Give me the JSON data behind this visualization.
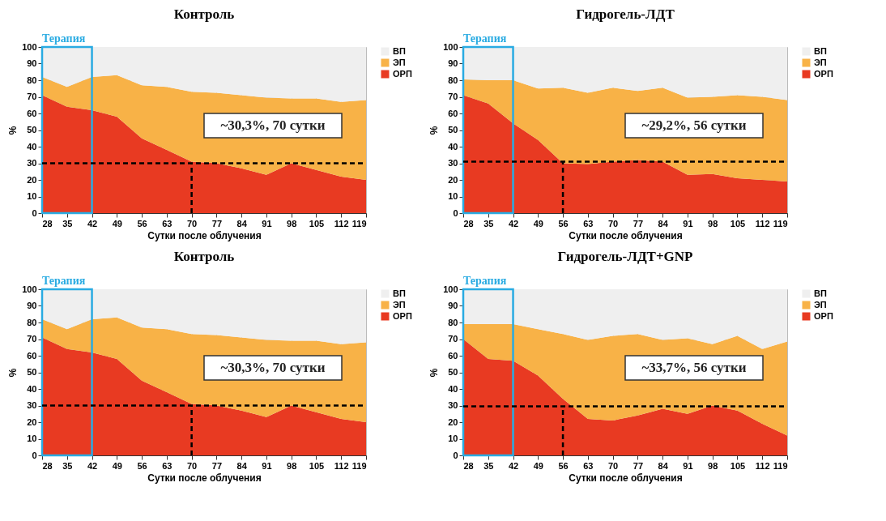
{
  "chart_data": [
    {
      "type": "area",
      "stacked": true,
      "title": "Контроль",
      "xlabel": "Сутки после облучения",
      "ylabel": "%",
      "x": [
        28,
        35,
        42,
        49,
        56,
        63,
        70,
        77,
        84,
        91,
        98,
        105,
        112,
        119
      ],
      "xlim": [
        28,
        119
      ],
      "xticks": [
        28,
        35,
        42,
        49,
        56,
        63,
        70,
        77,
        84,
        91,
        98,
        105,
        112,
        119
      ],
      "ylim": [
        0,
        100
      ],
      "yticks": [
        0,
        10,
        20,
        30,
        40,
        50,
        60,
        70,
        80,
        90,
        100
      ],
      "grid": true,
      "legend": "right",
      "series": [
        {
          "name": "ОРП",
          "color": "#e83a22",
          "values": [
            71,
            64,
            62,
            58,
            45,
            38,
            31,
            30,
            27,
            23,
            30,
            26,
            22,
            20
          ]
        },
        {
          "name": "ЭП",
          "color": "#f8b247",
          "values": [
            11,
            12,
            20,
            25,
            32,
            38,
            42,
            42.5,
            44,
            46.5,
            39,
            43,
            45,
            48
          ]
        },
        {
          "name": "ВП",
          "color": "#efefef",
          "values": [
            18,
            24,
            18,
            17,
            23,
            24,
            27,
            27.5,
            29,
            30.5,
            31,
            31,
            33,
            32
          ]
        }
      ],
      "bands": [
        {
          "axis": "x",
          "from": 28,
          "to": 42,
          "label": "Терапия",
          "color": "#29abe2"
        }
      ],
      "ref_lines": [
        {
          "axis": "y",
          "value": 30,
          "line_style": "dashed"
        },
        {
          "axis": "x",
          "value": 70,
          "line_style": "dashed"
        }
      ],
      "annotations": [
        "~30,3%, 70 сутки"
      ]
    },
    {
      "type": "area",
      "stacked": true,
      "title": "Гидрогель-ЛДТ",
      "xlabel": "Сутки после облучения",
      "ylabel": "%",
      "x": [
        28,
        35,
        42,
        49,
        56,
        63,
        70,
        77,
        84,
        91,
        98,
        105,
        112,
        119
      ],
      "xlim": [
        28,
        119
      ],
      "xticks": [
        28,
        35,
        42,
        49,
        56,
        63,
        70,
        77,
        84,
        91,
        98,
        105,
        112,
        119
      ],
      "ylim": [
        0,
        100
      ],
      "yticks": [
        0,
        10,
        20,
        30,
        40,
        50,
        60,
        70,
        80,
        90,
        100
      ],
      "grid": true,
      "legend": "right",
      "series": [
        {
          "name": "ОРП",
          "color": "#e83a22",
          "values": [
            71,
            66,
            54,
            44,
            30,
            29.5,
            31,
            32,
            31,
            23,
            23.5,
            21,
            20,
            19
          ]
        },
        {
          "name": "ЭП",
          "color": "#f8b247",
          "values": [
            9.5,
            14,
            26,
            31,
            45.5,
            43,
            44.5,
            41.5,
            44.5,
            46.5,
            46.5,
            50,
            50,
            49
          ]
        },
        {
          "name": "ВП",
          "color": "#efefef",
          "values": [
            19.5,
            20,
            20,
            25,
            24.5,
            27.5,
            24.5,
            26.5,
            24.5,
            30.5,
            30,
            29,
            30,
            32
          ]
        }
      ],
      "bands": [
        {
          "axis": "x",
          "from": 28,
          "to": 42,
          "label": "Терапия",
          "color": "#29abe2"
        }
      ],
      "ref_lines": [
        {
          "axis": "y",
          "value": 31,
          "line_style": "dashed"
        },
        {
          "axis": "x",
          "value": 56,
          "line_style": "dashed"
        }
      ],
      "annotations": [
        "~29,2%, 56 сутки"
      ]
    },
    {
      "type": "area",
      "stacked": true,
      "title": "Контроль",
      "xlabel": "Сутки после облучения",
      "ylabel": "%",
      "x": [
        28,
        35,
        42,
        49,
        56,
        63,
        70,
        77,
        84,
        91,
        98,
        105,
        112,
        119
      ],
      "xlim": [
        28,
        119
      ],
      "xticks": [
        28,
        35,
        42,
        49,
        56,
        63,
        70,
        77,
        84,
        91,
        98,
        105,
        112,
        119
      ],
      "ylim": [
        0,
        100
      ],
      "yticks": [
        0,
        10,
        20,
        30,
        40,
        50,
        60,
        70,
        80,
        90,
        100
      ],
      "grid": true,
      "legend": "right",
      "series": [
        {
          "name": "ОРП",
          "color": "#e83a22",
          "values": [
            71,
            64,
            62,
            58,
            45,
            38,
            31,
            30,
            27,
            23,
            30,
            26,
            22,
            20
          ]
        },
        {
          "name": "ЭП",
          "color": "#f8b247",
          "values": [
            11,
            12,
            20,
            25,
            32,
            38,
            42,
            42.5,
            44,
            46.5,
            39,
            43,
            45,
            48
          ]
        },
        {
          "name": "ВП",
          "color": "#efefef",
          "values": [
            18,
            24,
            18,
            17,
            23,
            24,
            27,
            27.5,
            29,
            30.5,
            31,
            31,
            33,
            32
          ]
        }
      ],
      "bands": [
        {
          "axis": "x",
          "from": 28,
          "to": 42,
          "label": "Терапия",
          "color": "#29abe2"
        }
      ],
      "ref_lines": [
        {
          "axis": "y",
          "value": 30,
          "line_style": "dashed"
        },
        {
          "axis": "x",
          "value": 70,
          "line_style": "dashed"
        }
      ],
      "annotations": [
        "~30,3%, 70 сутки"
      ]
    },
    {
      "type": "area",
      "stacked": true,
      "title": "Гидрогель-ЛДТ+GNP",
      "xlabel": "Сутки после облучения",
      "ylabel": "%",
      "x": [
        28,
        35,
        42,
        49,
        56,
        63,
        70,
        77,
        84,
        91,
        98,
        105,
        112,
        119
      ],
      "xlim": [
        28,
        119
      ],
      "xticks": [
        28,
        35,
        42,
        49,
        56,
        63,
        70,
        77,
        84,
        91,
        98,
        105,
        112,
        119
      ],
      "ylim": [
        0,
        100
      ],
      "yticks": [
        0,
        10,
        20,
        30,
        40,
        50,
        60,
        70,
        80,
        90,
        100
      ],
      "grid": true,
      "legend": "right",
      "series": [
        {
          "name": "ОРП",
          "color": "#e83a22",
          "values": [
            70,
            58,
            57,
            48,
            34,
            22,
            21,
            24,
            28,
            25,
            30,
            27,
            19,
            12
          ]
        },
        {
          "name": "ЭП",
          "color": "#f8b247",
          "values": [
            9,
            21,
            22,
            28,
            39,
            47.5,
            51,
            49,
            41.5,
            45.5,
            37,
            45,
            45,
            56.5
          ]
        },
        {
          "name": "ВП",
          "color": "#efefef",
          "values": [
            21,
            21,
            21,
            24,
            27,
            30.5,
            28,
            27,
            30.5,
            29.5,
            33,
            28,
            36,
            31.5
          ]
        }
      ],
      "bands": [
        {
          "axis": "x",
          "from": 28,
          "to": 42,
          "label": "Терапия",
          "color": "#29abe2"
        }
      ],
      "ref_lines": [
        {
          "axis": "y",
          "value": 29.5,
          "line_style": "dashed"
        },
        {
          "axis": "x",
          "value": 56,
          "line_style": "dashed"
        }
      ],
      "annotations": [
        "~33,7%, 56 сутки"
      ]
    }
  ]
}
